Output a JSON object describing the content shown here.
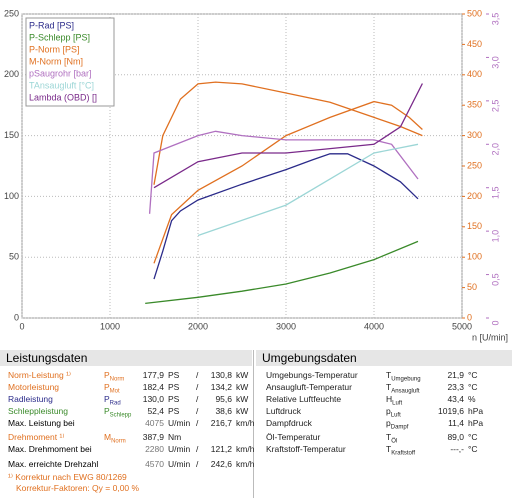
{
  "chart_data": {
    "type": "line",
    "x_label": "n [U/min]",
    "xlim": [
      0,
      5000
    ],
    "xticks": [
      0,
      1000,
      2000,
      3000,
      4000,
      5000
    ],
    "ylim": [
      0,
      250
    ],
    "yticks": [
      0,
      50,
      100,
      150,
      200,
      250
    ],
    "y2lim": [
      0,
      500
    ],
    "y2ticks": [
      0,
      50,
      100,
      150,
      200,
      250,
      300,
      350,
      400,
      450,
      500
    ],
    "y2color": "#e07020",
    "y3lim": [
      0,
      3.5
    ],
    "y3ticks": [
      {
        "value": 0,
        "label": "0"
      },
      {
        "value": 0.5,
        "label": "0,5"
      },
      {
        "value": 1,
        "label": "1,0"
      },
      {
        "value": 1.5,
        "label": "1,5"
      },
      {
        "value": 2,
        "label": "2,0"
      },
      {
        "value": 2.5,
        "label": "2,5"
      },
      {
        "value": 3,
        "label": "3,0"
      },
      {
        "value": 3.5,
        "label": "3,5"
      }
    ],
    "y3color": "#b070c0",
    "grid": true,
    "series": [
      {
        "name": "P-Rad [PS]",
        "color": "#2b2b8a",
        "x": [
          1500,
          1600,
          1700,
          1800,
          2000,
          2500,
          3000,
          3300,
          3500,
          3700,
          4000,
          4300,
          4500
        ],
        "values": [
          32,
          55,
          80,
          88,
          97,
          110,
          122,
          130,
          135,
          135,
          125,
          112,
          98
        ]
      },
      {
        "name": "P-Schlepp [PS]",
        "color": "#3a8a2a",
        "x": [
          1400,
          2000,
          2500,
          3000,
          3500,
          4000,
          4500
        ],
        "values": [
          12,
          17,
          22,
          28,
          37,
          48,
          63
        ]
      },
      {
        "name": "P-Norm [PS]",
        "color": "#e07020",
        "x": [
          1500,
          1700,
          2000,
          2500,
          3000,
          3500,
          4000,
          4200,
          4400,
          4550
        ],
        "values": [
          45,
          85,
          105,
          125,
          150,
          165,
          178,
          175,
          165,
          155
        ]
      },
      {
        "name": "M-Norm [Nm]",
        "color": "#e07020",
        "axis": "y2",
        "x": [
          1500,
          1600,
          1800,
          2000,
          2200,
          2500,
          3000,
          3500,
          4000,
          4300,
          4550
        ],
        "values": [
          219,
          300,
          360,
          385,
          388,
          385,
          370,
          355,
          330,
          315,
          300
        ]
      },
      {
        "name": "pSaugrohr [bar]",
        "color": "#b070c0",
        "axis": "y3",
        "x": [
          1450,
          1500,
          2000,
          2200,
          2500,
          3000,
          4000,
          4200,
          4500
        ],
        "values": [
          1.2,
          1.9,
          2.1,
          2.15,
          2.1,
          2.05,
          2.05,
          2.0,
          1.6
        ]
      },
      {
        "name": "TAnsaugluft [°C]",
        "color": "#9cd6d6",
        "axis": "y3",
        "x": [
          2000,
          3000,
          4000,
          4500
        ],
        "values": [
          0.95,
          1.3,
          1.9,
          2.0
        ]
      },
      {
        "name": "Lambda (OBD) []",
        "color": "#7a2a8a",
        "axis": "y3",
        "x": [
          1500,
          2000,
          2500,
          3000,
          3500,
          4000,
          4300,
          4550
        ],
        "values": [
          1.5,
          1.8,
          1.9,
          1.9,
          1.95,
          2.0,
          2.2,
          2.7
        ]
      }
    ]
  },
  "leistungsdaten": {
    "title": "Leistungsdaten",
    "rows": [
      {
        "color": "#e07020",
        "label": "Norm-Leistung ¹⁾",
        "symbol": {
          "main": "P",
          "sub": "Norm"
        },
        "value1": "177,9",
        "unit1": "PS",
        "sep": "/",
        "value2": "130,8",
        "unit2": "kW"
      },
      {
        "color": "#e07020",
        "label": "Motorleistung",
        "symbol": {
          "main": "P",
          "sub": "Mot"
        },
        "value1": "182,4",
        "unit1": "PS",
        "sep": "/",
        "value2": "134,2",
        "unit2": "kW"
      },
      {
        "color": "#2b2b8a",
        "label": "Radleistung",
        "symbol": {
          "main": "P",
          "sub": "Rad"
        },
        "value1": "130,0",
        "unit1": "PS",
        "sep": "/",
        "value2": "95,6",
        "unit2": "kW"
      },
      {
        "color": "#3a8a2a",
        "label": "Schleppleistung",
        "symbol": {
          "main": "P",
          "sub": "Schlepp"
        },
        "value1": "52,4",
        "unit1": "PS",
        "sep": "/",
        "value2": "38,6",
        "unit2": "kW"
      },
      {
        "color": "#000000",
        "label": "Max. Leistung bei",
        "value1": "4075",
        "unit1": "U/min",
        "sep": "/",
        "value2": "216,7",
        "unit2": "km/h"
      },
      {
        "color": "#e07020",
        "label": "Drehmoment ¹⁾",
        "symbol": {
          "main": "M",
          "sub": "Norm"
        },
        "value1": "387,9",
        "unit1": "Nm"
      },
      {
        "color": "#000000",
        "label": "Max. Drehmoment bei",
        "value1": "2280",
        "unit1": "U/min",
        "sep": "/",
        "value2": "121,2",
        "unit2": "km/h"
      },
      {
        "color": "#000000",
        "label": "Max. erreichte Drehzahl",
        "value1": "4570",
        "unit1": "U/min",
        "sep": "/",
        "value2": "242,6",
        "unit2": "km/h"
      }
    ],
    "footnotes": [
      "¹⁾ Korrektur nach EWG 80/1269",
      "Korrektur-Faktoren: Qy = 0,00 %"
    ]
  },
  "umgebungsdaten": {
    "title": "Umgebungsdaten",
    "rows": [
      {
        "label": "Umgebungs-Temperatur",
        "symbol": {
          "main": "T",
          "sub": "Umgebung"
        },
        "value": "21,9",
        "unit": "°C"
      },
      {
        "label": "Ansaugluft-Temperatur",
        "symbol": {
          "main": "T",
          "sub": "Ansaugluft"
        },
        "value": "23,3",
        "unit": "°C"
      },
      {
        "label": "Relative Luftfeuchte",
        "symbol": {
          "main": "H",
          "sub": "Luft"
        },
        "value": "43,4",
        "unit": "%"
      },
      {
        "label": "Luftdruck",
        "symbol": {
          "main": "p",
          "sub": "Luft"
        },
        "value": "1019,6",
        "unit": "hPa"
      },
      {
        "label": "Dampfdruck",
        "symbol": {
          "main": "p",
          "sub": "Dampf"
        },
        "value": "11,4",
        "unit": "hPa"
      },
      {
        "label": "Öl-Temperatur",
        "symbol": {
          "main": "T",
          "sub": "Öl"
        },
        "value": "89,0",
        "unit": "°C"
      },
      {
        "label": "Kraftstoff-Temperatur",
        "symbol": {
          "main": "T",
          "sub": "Kraftstoff"
        },
        "value": "---,-",
        "unit": "°C"
      }
    ]
  }
}
